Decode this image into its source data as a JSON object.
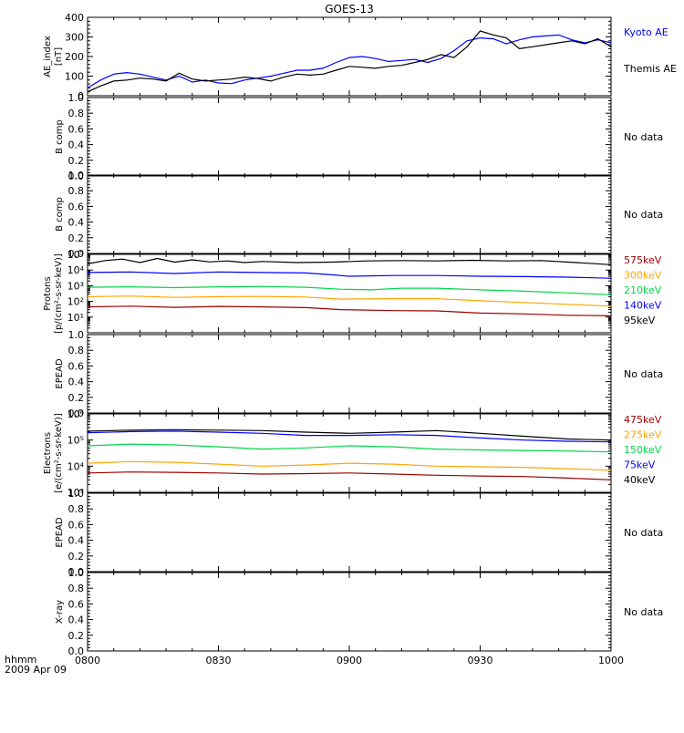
{
  "title": "GOES-13",
  "footer": {
    "line1": "hhmm",
    "line2": "2009 Apr 09"
  },
  "x_ticks": [
    "0800",
    "0830",
    "0900",
    "0930",
    "1000"
  ],
  "colors": {
    "black": "#000000",
    "blue": "#0000ff",
    "green": "#00d84a",
    "orange": "#ffa500",
    "darkred": "#9b0000"
  },
  "chart_data": [
    {
      "type": "line",
      "ylabel": [
        "AE_index",
        "[nT]"
      ],
      "ylim": [
        0,
        400
      ],
      "yticks": [
        "0",
        "100",
        "200",
        "300",
        "400"
      ],
      "x": [
        "0800",
        "1000"
      ],
      "legend": [
        {
          "text": "Kyoto AE",
          "color": "#0000ff"
        },
        {
          "text": "Themis AE",
          "color": "#000000"
        }
      ],
      "series": [
        {
          "name": "Kyoto AE",
          "color": "#0000ff",
          "points": [
            [
              0,
              40
            ],
            [
              3,
              80
            ],
            [
              6,
              110
            ],
            [
              9,
              118
            ],
            [
              12,
              110
            ],
            [
              15,
              95
            ],
            [
              18,
              80
            ],
            [
              21,
              100
            ],
            [
              24,
              70
            ],
            [
              27,
              80
            ],
            [
              30,
              65
            ],
            [
              33,
              62
            ],
            [
              36,
              80
            ],
            [
              39,
              90
            ],
            [
              42,
              100
            ],
            [
              45,
              115
            ],
            [
              48,
              130
            ],
            [
              51,
              130
            ],
            [
              54,
              140
            ],
            [
              57,
              170
            ],
            [
              60,
              195
            ],
            [
              63,
              200
            ],
            [
              66,
              190
            ],
            [
              69,
              175
            ],
            [
              72,
              180
            ],
            [
              75,
              185
            ],
            [
              78,
              170
            ],
            [
              81,
              190
            ],
            [
              84,
              230
            ],
            [
              87,
              280
            ],
            [
              90,
              295
            ],
            [
              93,
              290
            ],
            [
              96,
              265
            ],
            [
              99,
              285
            ],
            [
              102,
              300
            ],
            [
              105,
              305
            ],
            [
              108,
              310
            ],
            [
              111,
              285
            ],
            [
              114,
              270
            ],
            [
              117,
              285
            ],
            [
              120,
              270
            ]
          ]
        },
        {
          "name": "Themis AE",
          "color": "#000000",
          "points": [
            [
              0,
              20
            ],
            [
              3,
              50
            ],
            [
              6,
              75
            ],
            [
              9,
              80
            ],
            [
              12,
              90
            ],
            [
              15,
              85
            ],
            [
              18,
              75
            ],
            [
              21,
              115
            ],
            [
              24,
              85
            ],
            [
              27,
              75
            ],
            [
              30,
              80
            ],
            [
              33,
              85
            ],
            [
              36,
              95
            ],
            [
              39,
              88
            ],
            [
              42,
              75
            ],
            [
              45,
              95
            ],
            [
              48,
              110
            ],
            [
              51,
              105
            ],
            [
              54,
              110
            ],
            [
              57,
              130
            ],
            [
              60,
              150
            ],
            [
              63,
              145
            ],
            [
              66,
              140
            ],
            [
              69,
              150
            ],
            [
              72,
              155
            ],
            [
              75,
              170
            ],
            [
              78,
              185
            ],
            [
              81,
              210
            ],
            [
              84,
              195
            ],
            [
              87,
              250
            ],
            [
              90,
              330
            ],
            [
              93,
              310
            ],
            [
              96,
              295
            ],
            [
              99,
              240
            ],
            [
              102,
              250
            ],
            [
              105,
              260
            ],
            [
              108,
              270
            ],
            [
              111,
              280
            ],
            [
              114,
              265
            ],
            [
              117,
              290
            ],
            [
              120,
              250
            ]
          ]
        }
      ]
    },
    {
      "type": "line",
      "ylabel": [
        "B comp"
      ],
      "ylim": [
        0,
        1
      ],
      "yticks": [
        "0.0",
        "0.2",
        "0.4",
        "0.6",
        "0.8",
        "1.0"
      ],
      "note": "No data",
      "series": []
    },
    {
      "type": "line",
      "ylabel": [
        "B comp"
      ],
      "ylim": [
        0,
        1
      ],
      "yticks": [
        "0.0",
        "0.2",
        "0.4",
        "0.6",
        "0.8",
        "1.0"
      ],
      "note": "No data",
      "series": []
    },
    {
      "type": "line",
      "log": true,
      "ylabel": [
        "Protons",
        "[p/(cm²-s-sr-keV)]"
      ],
      "ylim": [
        1,
        100000
      ],
      "yticks": [
        "10¹",
        "10²",
        "10³",
        "10⁴",
        "10⁵"
      ],
      "legend": [
        {
          "text": "575keV",
          "color": "#9b0000"
        },
        {
          "text": "300keV",
          "color": "#ffa500"
        },
        {
          "text": "210keV",
          "color": "#00d84a"
        },
        {
          "text": "140keV",
          "color": "#0000ff"
        },
        {
          "text": "95keV",
          "color": "#000000"
        }
      ],
      "series": [
        {
          "name": "95keV",
          "color": "#000000",
          "points": [
            [
              0,
              25000
            ],
            [
              4,
              40000
            ],
            [
              8,
              50000
            ],
            [
              12,
              30000
            ],
            [
              16,
              55000
            ],
            [
              20,
              32000
            ],
            [
              24,
              45000
            ],
            [
              28,
              33000
            ],
            [
              32,
              38000
            ],
            [
              36,
              30000
            ],
            [
              40,
              35000
            ],
            [
              48,
              30000
            ],
            [
              56,
              32000
            ],
            [
              64,
              38000
            ],
            [
              72,
              40000
            ],
            [
              80,
              38000
            ],
            [
              88,
              42000
            ],
            [
              96,
              38000
            ],
            [
              104,
              40000
            ],
            [
              112,
              30000
            ],
            [
              120,
              22000
            ]
          ]
        },
        {
          "name": "140keV",
          "color": "#0000ff",
          "points": [
            [
              0,
              7000
            ],
            [
              10,
              7500
            ],
            [
              20,
              6000
            ],
            [
              30,
              7500
            ],
            [
              40,
              7000
            ],
            [
              50,
              6500
            ],
            [
              56,
              5000
            ],
            [
              60,
              4000
            ],
            [
              70,
              4500
            ],
            [
              80,
              4500
            ],
            [
              90,
              4000
            ],
            [
              100,
              3800
            ],
            [
              110,
              3500
            ],
            [
              120,
              3000
            ]
          ]
        },
        {
          "name": "210keV",
          "color": "#00d84a",
          "points": [
            [
              0,
              800
            ],
            [
              10,
              850
            ],
            [
              20,
              750
            ],
            [
              30,
              850
            ],
            [
              40,
              900
            ],
            [
              50,
              800
            ],
            [
              58,
              600
            ],
            [
              65,
              550
            ],
            [
              72,
              700
            ],
            [
              80,
              700
            ],
            [
              90,
              550
            ],
            [
              100,
              450
            ],
            [
              110,
              350
            ],
            [
              120,
              270
            ]
          ]
        },
        {
          "name": "300keV",
          "color": "#ffa500",
          "points": [
            [
              0,
              200
            ],
            [
              10,
              220
            ],
            [
              20,
              180
            ],
            [
              30,
              200
            ],
            [
              40,
              210
            ],
            [
              50,
              190
            ],
            [
              58,
              140
            ],
            [
              70,
              150
            ],
            [
              80,
              150
            ],
            [
              90,
              110
            ],
            [
              100,
              85
            ],
            [
              110,
              65
            ],
            [
              120,
              50
            ]
          ]
        },
        {
          "name": "575keV",
          "color": "#9b0000",
          "points": [
            [
              0,
              45
            ],
            [
              10,
              50
            ],
            [
              20,
              42
            ],
            [
              30,
              48
            ],
            [
              40,
              45
            ],
            [
              50,
              40
            ],
            [
              58,
              30
            ],
            [
              70,
              26
            ],
            [
              80,
              25
            ],
            [
              90,
              18
            ],
            [
              100,
              16
            ],
            [
              110,
              13
            ],
            [
              120,
              12
            ]
          ]
        }
      ]
    },
    {
      "type": "line",
      "ylabel": [
        "EPEAD"
      ],
      "ylim": [
        0,
        1
      ],
      "yticks": [
        "0.0",
        "0.2",
        "0.4",
        "0.6",
        "0.8",
        "1.0"
      ],
      "note": "No data",
      "series": []
    },
    {
      "type": "line",
      "log": true,
      "ylabel": [
        "Electrons",
        "[e/(cm²-s-sr-keV)]"
      ],
      "ylim": [
        1000,
        1000000
      ],
      "yticks": [
        "10³",
        "10⁴",
        "10⁵",
        "10⁶"
      ],
      "legend": [
        {
          "text": "475keV",
          "color": "#9b0000"
        },
        {
          "text": "275keV",
          "color": "#ffa500"
        },
        {
          "text": "150keV",
          "color": "#00d84a"
        },
        {
          "text": "75keV",
          "color": "#0000ff"
        },
        {
          "text": "40keV",
          "color": "#000000"
        }
      ],
      "series": [
        {
          "name": "40keV",
          "color": "#000000",
          "points": [
            [
              0,
              220000
            ],
            [
              10,
              240000
            ],
            [
              20,
              250000
            ],
            [
              30,
              240000
            ],
            [
              40,
              230000
            ],
            [
              50,
              200000
            ],
            [
              60,
              180000
            ],
            [
              70,
              200000
            ],
            [
              80,
              230000
            ],
            [
              90,
              180000
            ],
            [
              100,
              140000
            ],
            [
              110,
              110000
            ],
            [
              120,
              100000
            ]
          ]
        },
        {
          "name": "75keV",
          "color": "#0000ff",
          "points": [
            [
              0,
              190000
            ],
            [
              10,
              210000
            ],
            [
              20,
              220000
            ],
            [
              30,
              200000
            ],
            [
              40,
              180000
            ],
            [
              50,
              150000
            ],
            [
              60,
              150000
            ],
            [
              70,
              160000
            ],
            [
              80,
              150000
            ],
            [
              90,
              120000
            ],
            [
              100,
              100000
            ],
            [
              110,
              90000
            ],
            [
              120,
              85000
            ]
          ]
        },
        {
          "name": "150keV",
          "color": "#00d84a",
          "points": [
            [
              0,
              60000
            ],
            [
              10,
              70000
            ],
            [
              20,
              65000
            ],
            [
              30,
              55000
            ],
            [
              40,
              45000
            ],
            [
              50,
              50000
            ],
            [
              60,
              60000
            ],
            [
              70,
              55000
            ],
            [
              80,
              45000
            ],
            [
              90,
              42000
            ],
            [
              100,
              40000
            ],
            [
              110,
              38000
            ],
            [
              120,
              35000
            ]
          ]
        },
        {
          "name": "275keV",
          "color": "#ffa500",
          "points": [
            [
              0,
              13000
            ],
            [
              10,
              15000
            ],
            [
              20,
              14000
            ],
            [
              30,
              12000
            ],
            [
              40,
              10000
            ],
            [
              50,
              11000
            ],
            [
              60,
              13000
            ],
            [
              70,
              12000
            ],
            [
              80,
              10000
            ],
            [
              90,
              9500
            ],
            [
              100,
              9000
            ],
            [
              110,
              8000
            ],
            [
              120,
              7000
            ]
          ]
        },
        {
          "name": "475keV",
          "color": "#9b0000",
          "points": [
            [
              0,
              5500
            ],
            [
              10,
              6000
            ],
            [
              20,
              5800
            ],
            [
              30,
              5500
            ],
            [
              40,
              5000
            ],
            [
              50,
              5200
            ],
            [
              60,
              5500
            ],
            [
              70,
              5000
            ],
            [
              80,
              4500
            ],
            [
              90,
              4200
            ],
            [
              100,
              4000
            ],
            [
              110,
              3500
            ],
            [
              120,
              3000
            ]
          ]
        }
      ]
    },
    {
      "type": "line",
      "ylabel": [
        "EPEAD"
      ],
      "ylim": [
        0,
        1
      ],
      "yticks": [
        "0.0",
        "0.2",
        "0.4",
        "0.6",
        "0.8",
        "1.0"
      ],
      "note": "No data",
      "series": []
    },
    {
      "type": "line",
      "ylabel": [
        "X-ray"
      ],
      "ylim": [
        0,
        1
      ],
      "yticks": [
        "0.0",
        "0.2",
        "0.4",
        "0.6",
        "0.8",
        "1.0"
      ],
      "note": "No data",
      "series": []
    }
  ]
}
